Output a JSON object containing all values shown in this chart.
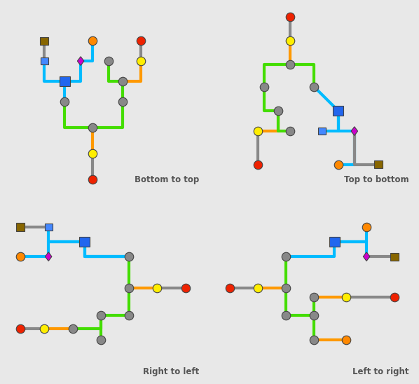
{
  "panel_labels": [
    "Bottom to top",
    "Top to bottom",
    "Right to left",
    "Left to right"
  ],
  "bg_color": "#e8e8e8",
  "panel_bg": "#ffffff",
  "colors": {
    "gray": "#888888",
    "cyan": "#00bbff",
    "green": "#44dd00",
    "orange": "#ff9900",
    "yellow": "#ffee00",
    "red": "#ee2200",
    "blue": "#2266ee",
    "blue2": "#4488ff",
    "purple": "#cc00cc",
    "brown": "#886600",
    "orange_node": "#ff8800"
  },
  "lw": 3.0
}
